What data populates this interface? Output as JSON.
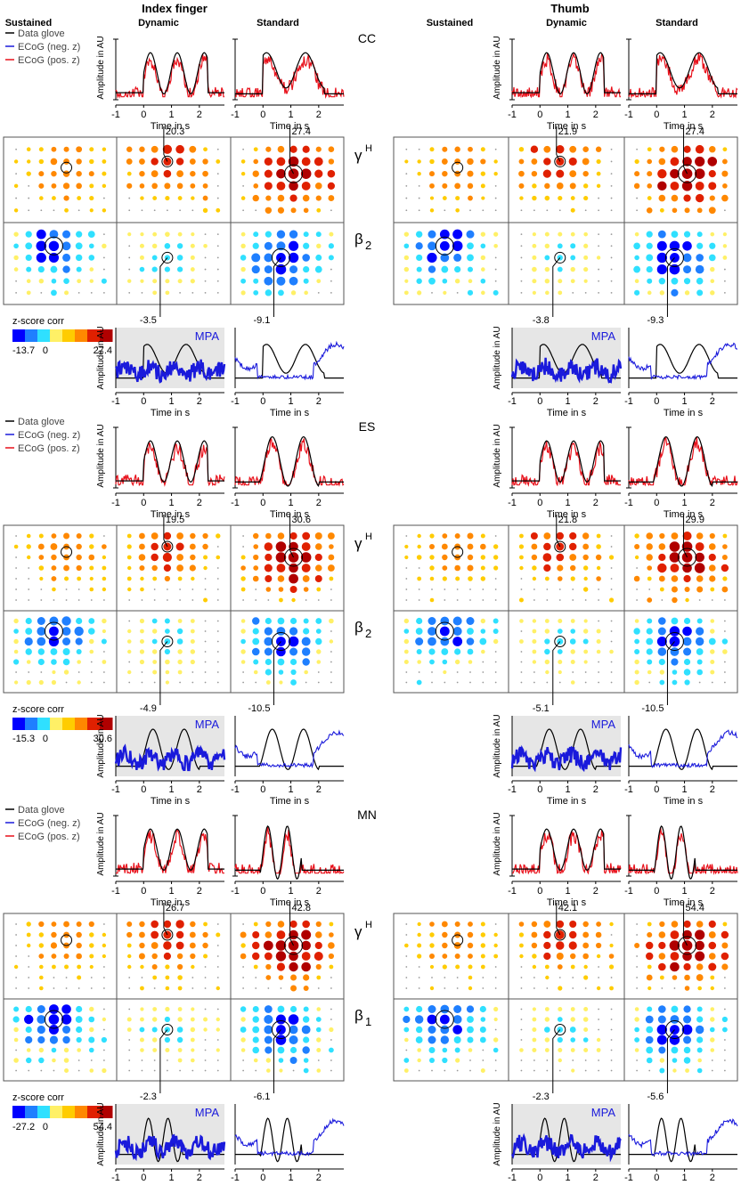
{
  "figure": {
    "column_group_titles": [
      "Index finger",
      "Thumb"
    ],
    "condition_labels": [
      "Sustained",
      "Dynamic",
      "Standard"
    ],
    "legend_entries": [
      "Data glove",
      "ECoG (neg. z)",
      "ECoG (pos. z)"
    ],
    "colorbar_title": "z-score corr",
    "x_axis_label": "Time in s",
    "y_axis_label": "Amplitude in AU",
    "mpa_label": "MPA",
    "gamma_label": "γ",
    "gamma_sup": "H",
    "beta_symbol": "β",
    "colors": {
      "glove": "#000000",
      "ecog_neg": "#1a1adb",
      "ecog_pos": "#e8111b",
      "panel_bg": "#e6e6e6",
      "grid_line": "#555555"
    },
    "colormap": [
      "#0000ff",
      "#1f7fff",
      "#2fe0ff",
      "#fff066",
      "#ffcc00",
      "#ff8800",
      "#e02000",
      "#b00000"
    ]
  },
  "chart_data": [
    {
      "type": "line",
      "subject": "CC",
      "band_label_beta": "2",
      "colorbar_ticks": [
        "-13.7",
        "0",
        "27.4"
      ],
      "x_ticks": [
        "-1",
        "0",
        "1",
        "2"
      ],
      "annotations": {
        "index_dynamic_gamma": "20.3",
        "index_standard_gamma": "27.4",
        "index_dynamic_beta": "-3.5",
        "index_standard_beta": "-9.1",
        "thumb_dynamic_gamma": "21.9",
        "thumb_standard_gamma": "27.4",
        "thumb_dynamic_beta": "-3.8",
        "thumb_standard_beta": "-9.3"
      },
      "xlim": [
        -1,
        3
      ]
    },
    {
      "type": "line",
      "subject": "ES",
      "band_label_beta": "2",
      "colorbar_ticks": [
        "-15.3",
        "0",
        "30.6"
      ],
      "x_ticks": [
        "-1",
        "0",
        "1",
        "2"
      ],
      "annotations": {
        "index_dynamic_gamma": "19.5",
        "index_standard_gamma": "30.6",
        "index_dynamic_beta": "-4.9",
        "index_standard_beta": "-10.5",
        "thumb_dynamic_gamma": "21.8",
        "thumb_standard_gamma": "29.9",
        "thumb_dynamic_beta": "-5.1",
        "thumb_standard_beta": "-10.5"
      },
      "xlim": [
        -1,
        3
      ]
    },
    {
      "type": "line",
      "subject": "MN",
      "band_label_beta": "1",
      "colorbar_ticks": [
        "-27.2",
        "0",
        "54.4"
      ],
      "x_ticks": [
        "-1",
        "0",
        "1",
        "2"
      ],
      "annotations": {
        "index_dynamic_gamma": "26.7",
        "index_standard_gamma": "42.8",
        "index_dynamic_beta": "-2.3",
        "index_standard_beta": "-6.1",
        "thumb_dynamic_gamma": "42.1",
        "thumb_standard_gamma": "54.4",
        "thumb_dynamic_beta": "-2.3",
        "thumb_standard_beta": "-5.6"
      },
      "xlim": [
        -1,
        3
      ]
    }
  ]
}
